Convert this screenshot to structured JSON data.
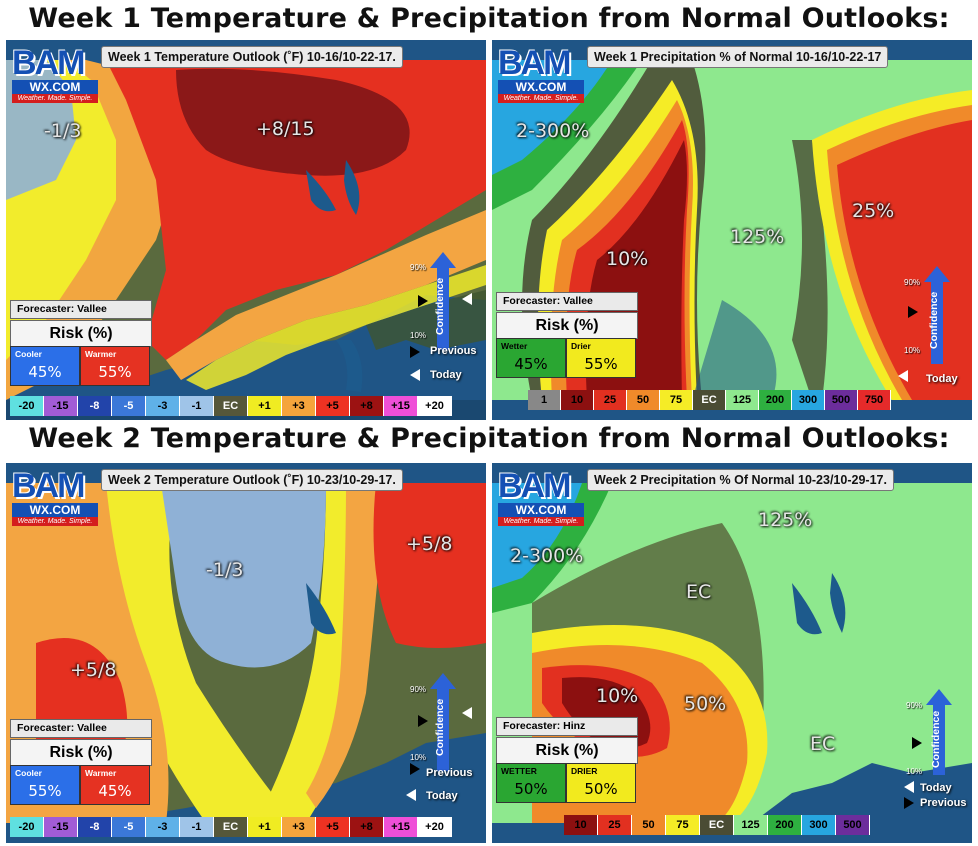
{
  "titles": {
    "week1": "Week 1 Temperature & Precipitation from Normal Outlooks:",
    "week2": "Week 2 Temperature & Precipitation from Normal Outlooks:"
  },
  "logo": {
    "top": "BAM",
    "m_letter": "M",
    "wx": "WX.COM",
    "tagline": "Weather. Made. Simple."
  },
  "panels": {
    "w1_temp": {
      "header": "Week 1 Temperature Outlook (˚F) 10-16/10-22-17.",
      "labels": [
        "-1/3",
        "+8/15"
      ],
      "forecaster": "Forecaster: Vallee",
      "risk_title": "Risk (%)",
      "risk": [
        {
          "sub": "Cooler",
          "value": "45%",
          "color": "#2b6fe8"
        },
        {
          "sub": "Warmer",
          "value": "55%",
          "color": "#e53222"
        }
      ],
      "confidence": {
        "label": "Confidence",
        "high": "90%",
        "low": "10%"
      },
      "nav": {
        "previous": "Previous",
        "today": "Today"
      },
      "legend": [
        {
          "label": "-20",
          "bg": "#5fe0e0",
          "fg": "#000"
        },
        {
          "label": "-15",
          "bg": "#a25cd6",
          "fg": "#000"
        },
        {
          "label": "-8",
          "bg": "#2244aa",
          "fg": "#fff"
        },
        {
          "label": "-5",
          "bg": "#3b78d8",
          "fg": "#fff"
        },
        {
          "label": "-3",
          "bg": "#5fb1e8",
          "fg": "#000"
        },
        {
          "label": "-1",
          "bg": "#9fc4e8",
          "fg": "#000"
        },
        {
          "label": "EC",
          "bg": "#55573a",
          "fg": "#fff"
        },
        {
          "label": "+1",
          "bg": "#f0ec22",
          "fg": "#000"
        },
        {
          "label": "+3",
          "bg": "#f5a43c",
          "fg": "#000"
        },
        {
          "label": "+5",
          "bg": "#ee3222",
          "fg": "#000"
        },
        {
          "label": "+8",
          "bg": "#9c1212",
          "fg": "#000"
        },
        {
          "label": "+15",
          "bg": "#ef4fd8",
          "fg": "#000"
        },
        {
          "label": "+20",
          "bg": "#ffffff",
          "fg": "#000"
        }
      ]
    },
    "w1_precip": {
      "header": "Week 1 Precipitation % of Normal 10-16/10-22-17",
      "labels": [
        "2-300%",
        "10%",
        "125%",
        "25%"
      ],
      "forecaster": "Forecaster: Vallee",
      "risk_title": "Risk (%)",
      "risk": [
        {
          "sub": "Wetter",
          "value": "45%",
          "color": "#2aa632"
        },
        {
          "sub": "Drier",
          "value": "55%",
          "color": "#f2ea1e"
        }
      ],
      "confidence": {
        "label": "Confidence",
        "high": "90%",
        "low": "10%"
      },
      "nav": {
        "today": "Today"
      },
      "legend": [
        {
          "label": "1",
          "bg": "#888888",
          "fg": "#000"
        },
        {
          "label": "10",
          "bg": "#8c1010",
          "fg": "#000"
        },
        {
          "label": "25",
          "bg": "#e23020",
          "fg": "#000"
        },
        {
          "label": "50",
          "bg": "#f08a2a",
          "fg": "#000"
        },
        {
          "label": "75",
          "bg": "#f5ec26",
          "fg": "#000"
        },
        {
          "label": "EC",
          "bg": "#4a4c34",
          "fg": "#fff"
        },
        {
          "label": "125",
          "bg": "#8ee88e",
          "fg": "#000"
        },
        {
          "label": "200",
          "bg": "#2eb040",
          "fg": "#000"
        },
        {
          "label": "300",
          "bg": "#27a6e0",
          "fg": "#000"
        },
        {
          "label": "500",
          "bg": "#6c2d9c",
          "fg": "#000"
        },
        {
          "label": "750",
          "bg": "#e52a2a",
          "fg": "#000"
        }
      ]
    },
    "w2_temp": {
      "header": "Week 2 Temperature Outlook (˚F) 10-23/10-29-17.",
      "labels": [
        "-1/3",
        "+5/8",
        "+5/8"
      ],
      "forecaster": "Forecaster: Vallee",
      "risk_title": "Risk (%)",
      "risk": [
        {
          "sub": "Cooler",
          "value": "55%",
          "color": "#2b6fe8"
        },
        {
          "sub": "Warmer",
          "value": "45%",
          "color": "#e53222"
        }
      ],
      "confidence": {
        "label": "Confidence",
        "high": "90%",
        "low": "10%"
      },
      "nav": {
        "previous": "Previous",
        "today": "Today"
      },
      "legend": [
        {
          "label": "-20",
          "bg": "#5fe0e0",
          "fg": "#000"
        },
        {
          "label": "-15",
          "bg": "#a25cd6",
          "fg": "#000"
        },
        {
          "label": "-8",
          "bg": "#2244aa",
          "fg": "#fff"
        },
        {
          "label": "-5",
          "bg": "#3b78d8",
          "fg": "#fff"
        },
        {
          "label": "-3",
          "bg": "#5fb1e8",
          "fg": "#000"
        },
        {
          "label": "-1",
          "bg": "#9fc4e8",
          "fg": "#000"
        },
        {
          "label": "EC",
          "bg": "#55573a",
          "fg": "#fff"
        },
        {
          "label": "+1",
          "bg": "#f0ec22",
          "fg": "#000"
        },
        {
          "label": "+3",
          "bg": "#f5a43c",
          "fg": "#000"
        },
        {
          "label": "+5",
          "bg": "#ee3222",
          "fg": "#000"
        },
        {
          "label": "+8",
          "bg": "#9c1212",
          "fg": "#000"
        },
        {
          "label": "+15",
          "bg": "#ef4fd8",
          "fg": "#000"
        },
        {
          "label": "+20",
          "bg": "#ffffff",
          "fg": "#000"
        }
      ]
    },
    "w2_precip": {
      "header": "Week 2 Precipitation % Of Normal 10-23/10-29-17.",
      "labels": [
        "125%",
        "2-300%",
        "EC",
        "10%",
        "50%",
        "EC"
      ],
      "forecaster": "Forecaster: Hinz",
      "risk_title": "Risk (%)",
      "risk": [
        {
          "sub": "WETTER",
          "value": "50%",
          "color": "#2aa632"
        },
        {
          "sub": "DRIER",
          "value": "50%",
          "color": "#f2ea1e"
        }
      ],
      "confidence": {
        "label": "Confidence",
        "high": "90%",
        "low": "10%"
      },
      "nav": {
        "today": "Today",
        "previous": "Previous"
      },
      "legend": [
        {
          "label": "10",
          "bg": "#8c1010",
          "fg": "#000"
        },
        {
          "label": "25",
          "bg": "#e23020",
          "fg": "#000"
        },
        {
          "label": "50",
          "bg": "#f08a2a",
          "fg": "#000"
        },
        {
          "label": "75",
          "bg": "#f5ec26",
          "fg": "#000"
        },
        {
          "label": "EC",
          "bg": "#4a4c34",
          "fg": "#fff"
        },
        {
          "label": "125",
          "bg": "#8ee88e",
          "fg": "#000"
        },
        {
          "label": "200",
          "bg": "#2eb040",
          "fg": "#000"
        },
        {
          "label": "300",
          "bg": "#27a6e0",
          "fg": "#000"
        },
        {
          "label": "500",
          "bg": "#6c2d9c",
          "fg": "#000"
        }
      ]
    }
  }
}
